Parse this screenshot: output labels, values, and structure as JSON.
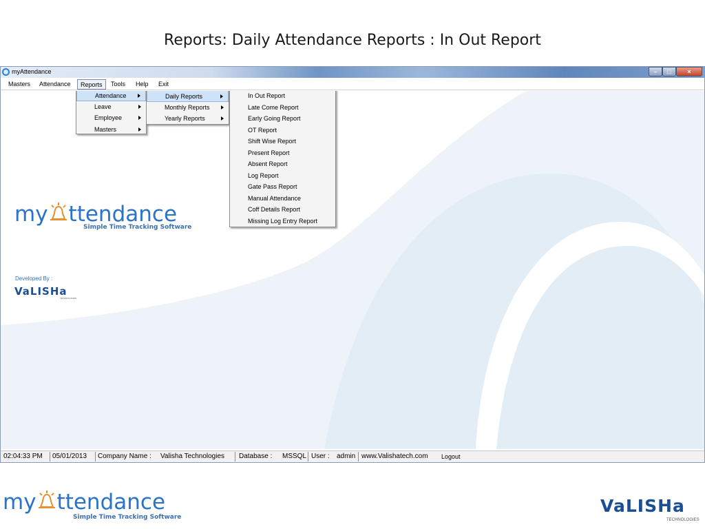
{
  "slide": {
    "title": "Reports: Daily Attendance Reports : In Out Report"
  },
  "window": {
    "title": "myAttendance",
    "controls": {
      "minimize": "–",
      "maximize": "□",
      "close": "×"
    }
  },
  "menubar": {
    "items": [
      "Masters",
      "Attendance",
      "Reports",
      "Tools",
      "Help",
      "Exit"
    ]
  },
  "reports_menu": {
    "items": [
      {
        "label": "Attendance",
        "submenu": true
      },
      {
        "label": "Leave",
        "submenu": true
      },
      {
        "label": "Employee",
        "submenu": true
      },
      {
        "label": "Masters",
        "submenu": true
      }
    ]
  },
  "attendance_menu": {
    "items": [
      {
        "label": "Daily Reports",
        "submenu": true
      },
      {
        "label": "Monthly Reports",
        "submenu": true
      },
      {
        "label": "Yearly Reports",
        "submenu": true
      }
    ]
  },
  "daily_menu": {
    "items": [
      "In Out Report",
      "Late Come Report",
      "Early Going Report",
      "OT Report",
      "Shift Wise Report",
      "Present Report",
      "Absent Report",
      "Log Report",
      "Gate Pass Report",
      "Manual Attendance",
      "Coff Details Report",
      "Missing Log Entry Report"
    ]
  },
  "branding": {
    "logo_word": "myAttendance",
    "logo_part1": "my",
    "logo_part2": "ttendance",
    "tagline": "Simple Time Tracking Software",
    "developed_by": "Developed By :",
    "company_logo": "VaLISHa",
    "company_sub": "TECHNOLOGIES"
  },
  "statusbar": {
    "time": "02:04:33 PM",
    "date": "05/01/2013",
    "company_label": "Company Name :",
    "company_value": "Valisha Technologies",
    "database_label": "Database :",
    "database_value": "MSSQL",
    "user_label": "User :",
    "user_value": "admin",
    "website": "www.Valishatech.com",
    "logout": "Logout"
  },
  "colors": {
    "accent": "#2b73c8",
    "highlight": "#cfe3f8",
    "brand_dark": "#1a4e95",
    "logo_orange": "#e8902a"
  }
}
